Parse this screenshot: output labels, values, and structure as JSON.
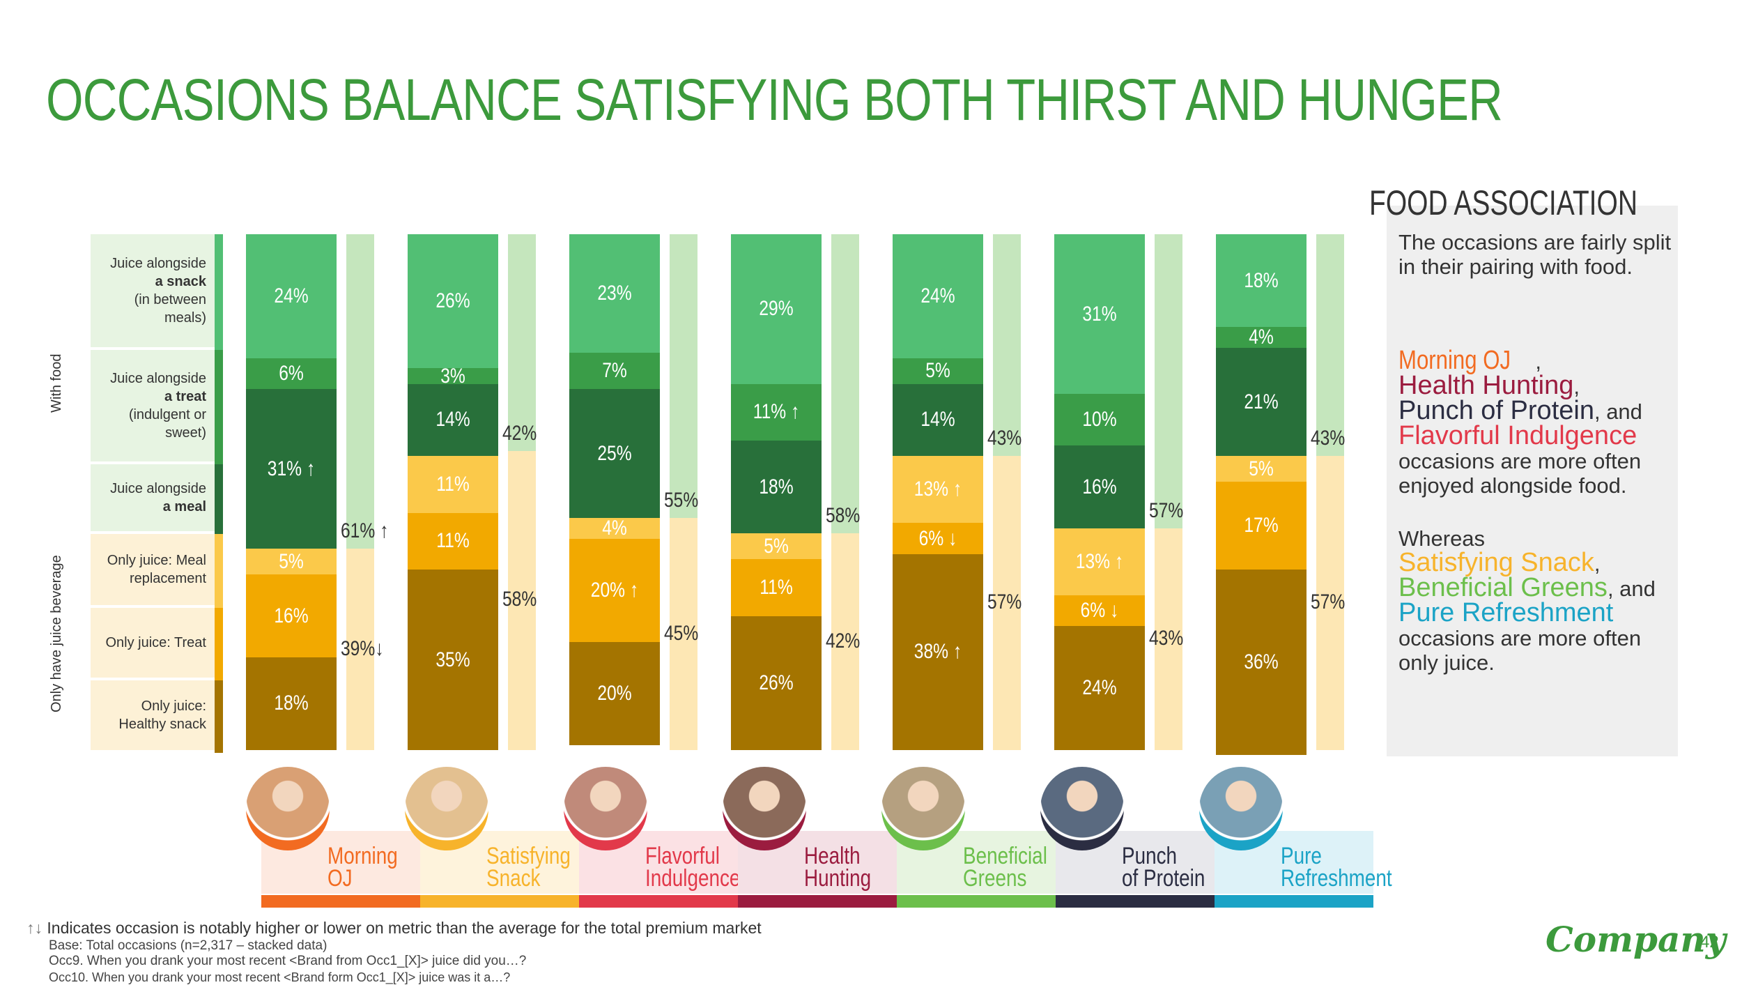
{
  "title": "OCCASIONS BALANCE SATISFYING BOTH THIRST AND HUNGER",
  "group_labels": {
    "with_food": "With food",
    "only_juice": "Only have juice beverage"
  },
  "row_labels": [
    {
      "pre": "Juice alongside",
      "bold": "a snack",
      "post": "(in between meals)"
    },
    {
      "pre": "Juice alongside",
      "bold": "a treat",
      "post": "(indulgent or sweet)"
    },
    {
      "pre": "Juice alongside",
      "bold": "a meal",
      "post": ""
    },
    {
      "pre": "Only juice: Meal replacement",
      "bold": "",
      "post": ""
    },
    {
      "pre": "Only juice: Treat",
      "bold": "",
      "post": ""
    },
    {
      "pre": "Only juice: Healthy snack",
      "bold": "",
      "post": ""
    }
  ],
  "colors": {
    "snack": "#52bf74",
    "treat": "#3a9d48",
    "meal": "#28703a",
    "mealrep": "#fbc94a",
    "only_treat": "#f2a900",
    "healthy": "#a47400",
    "with_food_total": "#c5e6bd",
    "only_total": "#fde7b4",
    "rowbg_green": "#e7f4e2",
    "rowbg_yellow": "#fdf1d6"
  },
  "chart_data": {
    "type": "bar",
    "stacked": true,
    "categories": [
      "Morning OJ",
      "Satisfying Snack",
      "Flavorful Indulgence",
      "Health Hunting",
      "Beneficial Greens",
      "Punch of Protein",
      "Pure Refreshment"
    ],
    "segments": [
      "Juice alongside a snack",
      "Juice alongside a treat",
      "Juice alongside a meal",
      "Only juice: Meal replacement",
      "Only juice: Treat",
      "Only juice: Healthy snack"
    ],
    "series": [
      {
        "name": "Juice alongside a snack",
        "values": [
          24,
          26,
          23,
          29,
          24,
          31,
          18
        ]
      },
      {
        "name": "Juice alongside a treat",
        "values": [
          6,
          3,
          7,
          11,
          5,
          10,
          4
        ]
      },
      {
        "name": "Juice alongside a meal",
        "values": [
          31,
          14,
          25,
          18,
          14,
          16,
          21
        ]
      },
      {
        "name": "Only juice: Meal replacement",
        "values": [
          5,
          11,
          4,
          5,
          13,
          13,
          5
        ]
      },
      {
        "name": "Only juice: Treat",
        "values": [
          16,
          11,
          20,
          11,
          6,
          6,
          17
        ]
      },
      {
        "name": "Only juice: Healthy snack",
        "values": [
          18,
          35,
          20,
          26,
          38,
          24,
          36
        ]
      }
    ],
    "arrows": [
      [
        null,
        null,
        "up",
        null,
        null,
        null
      ],
      [
        null,
        null,
        null,
        null,
        null,
        null
      ],
      [
        null,
        null,
        null,
        null,
        "up",
        null
      ],
      [
        null,
        "up",
        null,
        null,
        null,
        null
      ],
      [
        null,
        null,
        null,
        "up",
        "down",
        "up"
      ],
      [
        null,
        null,
        null,
        "up",
        "down",
        null
      ],
      [
        null,
        null,
        null,
        null,
        null,
        null
      ]
    ],
    "with_food_totals": [
      61,
      42,
      55,
      58,
      43,
      57,
      43
    ],
    "only_juice_totals": [
      39,
      58,
      45,
      42,
      57,
      43,
      57
    ],
    "total_arrows": [
      [
        "up",
        "down"
      ],
      [
        null,
        null
      ],
      [
        null,
        null
      ],
      [
        null,
        null
      ],
      [
        null,
        null
      ],
      [
        null,
        null
      ],
      [
        null,
        null
      ]
    ],
    "ylim": [
      0,
      100
    ]
  },
  "occasions": [
    {
      "name": "Morning\nOJ",
      "color": "#f26b21",
      "bg": "#fde9e0",
      "photo": "#d9a074"
    },
    {
      "name": "Satisfying\nSnack",
      "color": "#f7b32b",
      "bg": "#fef3dc",
      "photo": "#e3c090"
    },
    {
      "name": "Flavorful\nIndulgence",
      "color": "#e2394a",
      "bg": "#fbe1e4",
      "photo": "#c08a7a"
    },
    {
      "name": "Health\nHunting",
      "color": "#9b1c3f",
      "bg": "#f4e0e5",
      "photo": "#8b6a5a"
    },
    {
      "name": "Beneficial\nGreens",
      "color": "#6cbf4b",
      "bg": "#e7f4e0",
      "photo": "#b5a080"
    },
    {
      "name": "Punch\nof Protein",
      "color": "#2b2d42",
      "bg": "#e8e8ec",
      "photo": "#5a6a80"
    },
    {
      "name": "Pure\nRefreshment",
      "color": "#1ba3c6",
      "bg": "#ddf2f8",
      "photo": "#7aa0b5"
    }
  ],
  "side": {
    "title": "FOOD ASSOCIATION",
    "para1": "The occasions are fairly split in their pairing with food.",
    "p2_morning": "Morning OJ",
    "p2_sep1": ", ",
    "p2_health": "Health Hunting",
    "p2_sep2": ", ",
    "p2_punch": "Punch of Protein",
    "p2_sep3": ", and ",
    "p2_flavorful": "Flavorful Indulgence",
    "p2_tail": " occasions are more often enjoyed alongside food.",
    "p3_head": "Whereas ",
    "p3_satisfying": "Satisfying Snack",
    "p3_sep1": ", ",
    "p3_beneficial": "Beneficial Greens",
    "p3_sep2": ", and ",
    "p3_pure": "Pure Refreshment",
    "p3_tail": " occasions are more often only juice."
  },
  "footnote": {
    "arrows": "↑↓",
    "text": "Indicates occasion is notably higher or lower on metric than the average for the total premium market",
    "base": "Base: Total occasions (n=2,317 – stacked data)",
    "occ9": "Occ9. When you drank your most recent <Brand from Occ1_[X]> juice did you…?",
    "occ10": "Occ10. When you drank your most recent <Brand form Occ1_[X]> juice was it a…?"
  },
  "logo": "Company",
  "page_number": "42"
}
